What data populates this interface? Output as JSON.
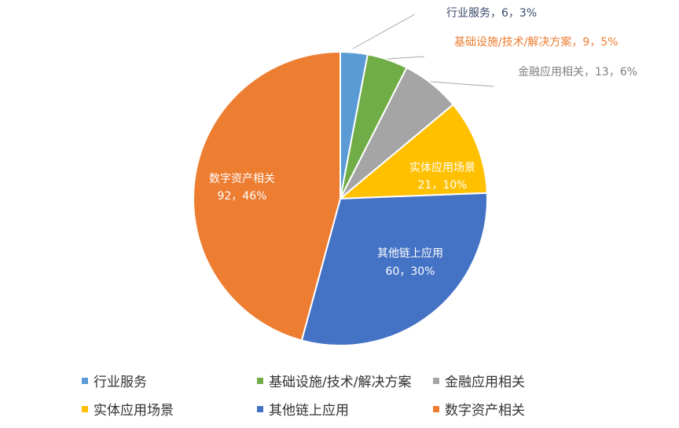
{
  "chart_data": {
    "type": "pie",
    "slices": [
      {
        "name": "行业服务",
        "value": 6,
        "percent": "3%",
        "color": "#5B9BD5",
        "label": "行业服务，6，3%"
      },
      {
        "name": "基础设施/技术/解决方案",
        "value": 9,
        "percent": "5%",
        "color": "#70AD47",
        "label": "基础设施/技术/解决方案，9，5%"
      },
      {
        "name": "金融应用相关",
        "value": 13,
        "percent": "6%",
        "color": "#A5A5A5",
        "label": "金融应用相关，13，6%"
      },
      {
        "name": "实体应用场景",
        "value": 21,
        "percent": "10%",
        "color": "#FFC000",
        "label_line1": "实体应用场景",
        "label_line2": "21，10%"
      },
      {
        "name": "其他链上应用",
        "value": 60,
        "percent": "30%",
        "color": "#4472C4",
        "label_line1": "其他链上应用",
        "label_line2": "60，30%"
      },
      {
        "name": "数字资产相关",
        "value": 92,
        "percent": "46%",
        "color": "#ED7D31",
        "label_line1": "数字资产相关",
        "label_line2": "92，46%"
      }
    ],
    "legend_position": "bottom"
  },
  "label_colors": {
    "行业服务": "#3a4a6b",
    "基础设施/技术/解决方案": "#ED7D31",
    "金融应用相关": "#7f7f7f"
  }
}
